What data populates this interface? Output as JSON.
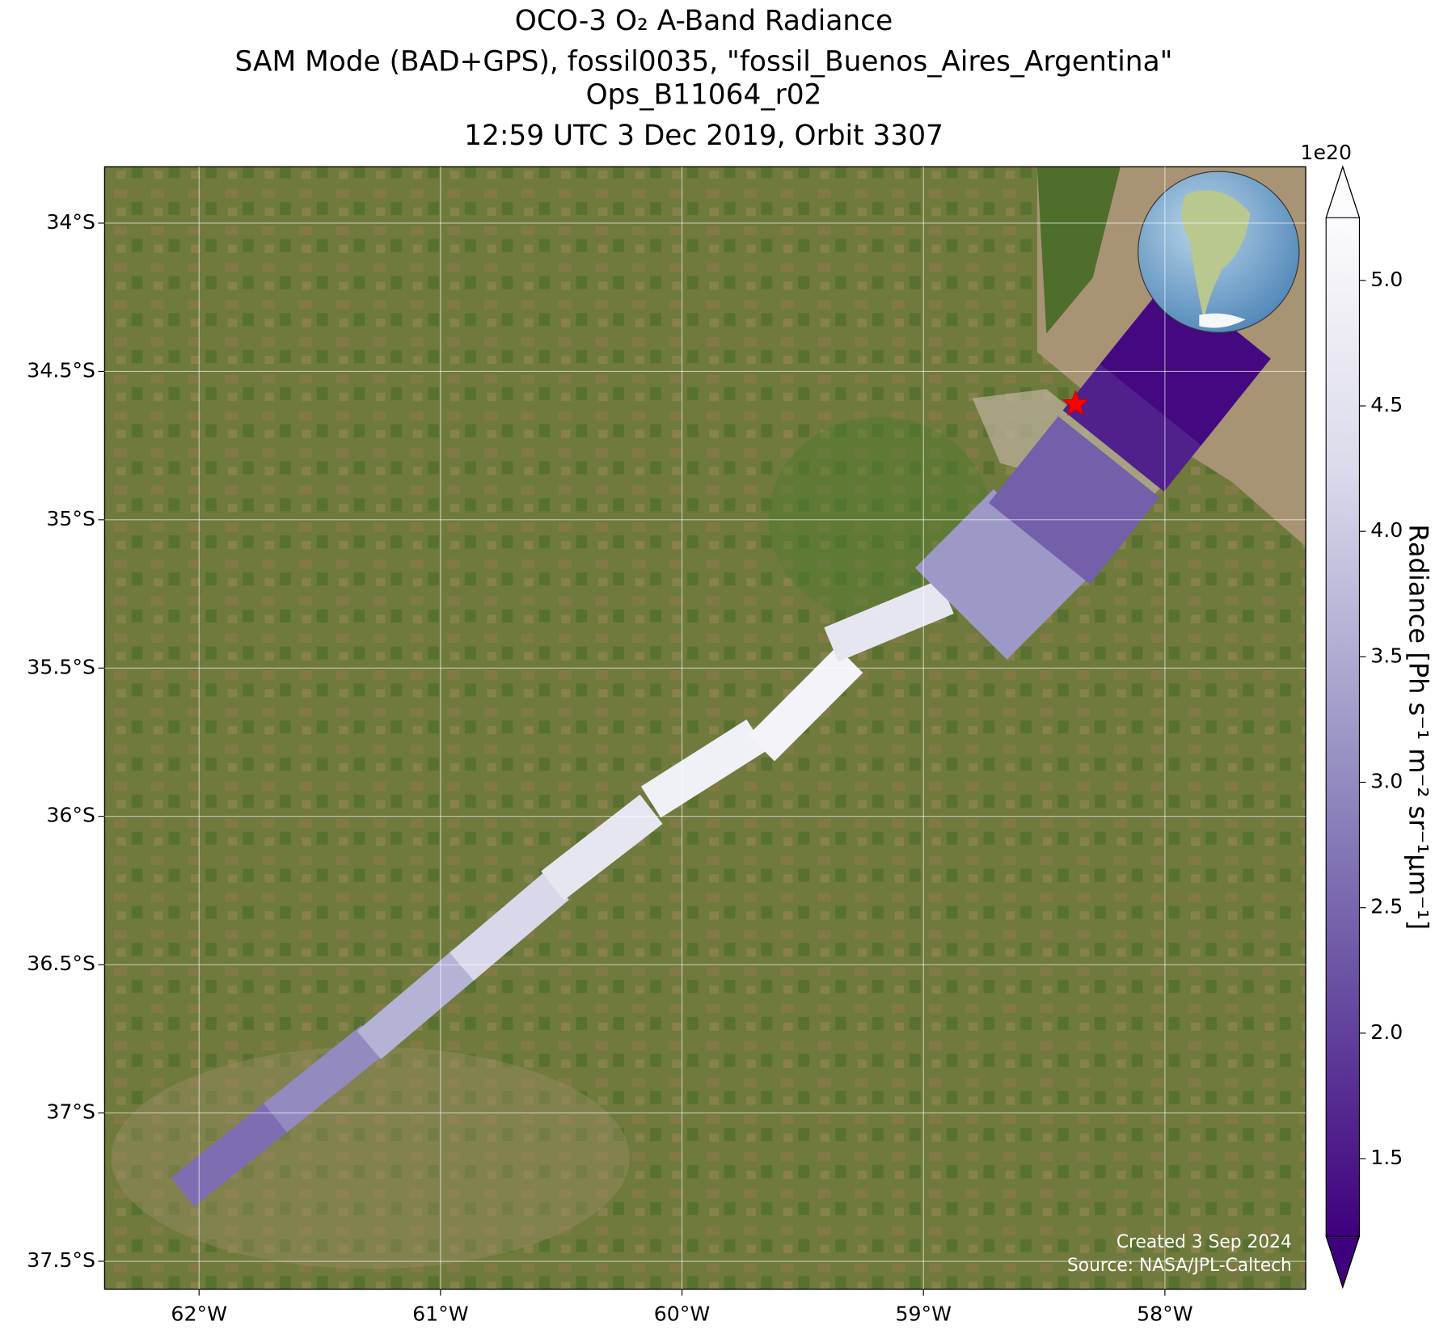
{
  "chart_data": {
    "type": "map",
    "title": [
      "OCO-3 O₂ A-Band Radiance",
      "SAM Mode (BAD+GPS), fossil0035, \"fossil_Buenos_Aires_Argentina\"",
      "Ops_B11064_r02",
      "12:59 UTC 3 Dec 2019, Orbit 3307"
    ],
    "xlim": [
      -62.391,
      -57.417
    ],
    "ylim": [
      -37.594,
      -33.81
    ],
    "xticks": [
      {
        "value": -62,
        "label": "62°W"
      },
      {
        "value": -61,
        "label": "61°W"
      },
      {
        "value": -60,
        "label": "60°W"
      },
      {
        "value": -59,
        "label": "59°W"
      },
      {
        "value": -58,
        "label": "58°W"
      }
    ],
    "yticks": [
      {
        "value": -34,
        "label": "34°S"
      },
      {
        "value": -34.5,
        "label": "34.5°S"
      },
      {
        "value": -35,
        "label": "35°S"
      },
      {
        "value": -35.5,
        "label": "35.5°S"
      },
      {
        "value": -36,
        "label": "36°S"
      },
      {
        "value": -36.5,
        "label": "36.5°S"
      },
      {
        "value": -37,
        "label": "37°S"
      },
      {
        "value": -37.5,
        "label": "37.5°S"
      }
    ],
    "grid": true,
    "colorbar": {
      "label": "Radiance [Ph s⁻¹ m⁻² sr⁻¹μm⁻¹]",
      "offset_label": "1e20",
      "colormap": "Purples",
      "clim": [
        1.19,
        5.25
      ],
      "ticks": [
        1.5,
        {
          "value": 2,
          "label": "2.0"
        },
        2.5,
        {
          "value": 3,
          "label": "3.0"
        },
        3.5,
        {
          "value": 4,
          "label": "4.0"
        },
        4.5,
        {
          "value": 5,
          "label": "5.0"
        }
      ]
    },
    "swath": {
      "lon": [
        -61.866,
        -61.482,
        -61.099,
        -60.715,
        -60.332,
        -59.91,
        -59.488,
        -59.143,
        -58.682,
        -58.376,
        -58.069,
        -57.915
      ],
      "lat": [
        -37.135,
        -36.885,
        -36.635,
        -36.37,
        -36.105,
        -35.839,
        -35.621,
        -35.34,
        -35.184,
        -34.934,
        -34.622,
        -34.466
      ],
      "radiance": [
        2.6,
        3.0,
        3.6,
        4.2,
        4.6,
        4.9,
        5.0,
        4.6,
        3.2,
        2.4,
        1.6,
        1.3
      ]
    },
    "target": {
      "lon": -58.37,
      "lat": -34.61
    },
    "credits": [
      "Created 3 Sep 2024",
      "Source: NASA/JPL-Caltech"
    ]
  }
}
